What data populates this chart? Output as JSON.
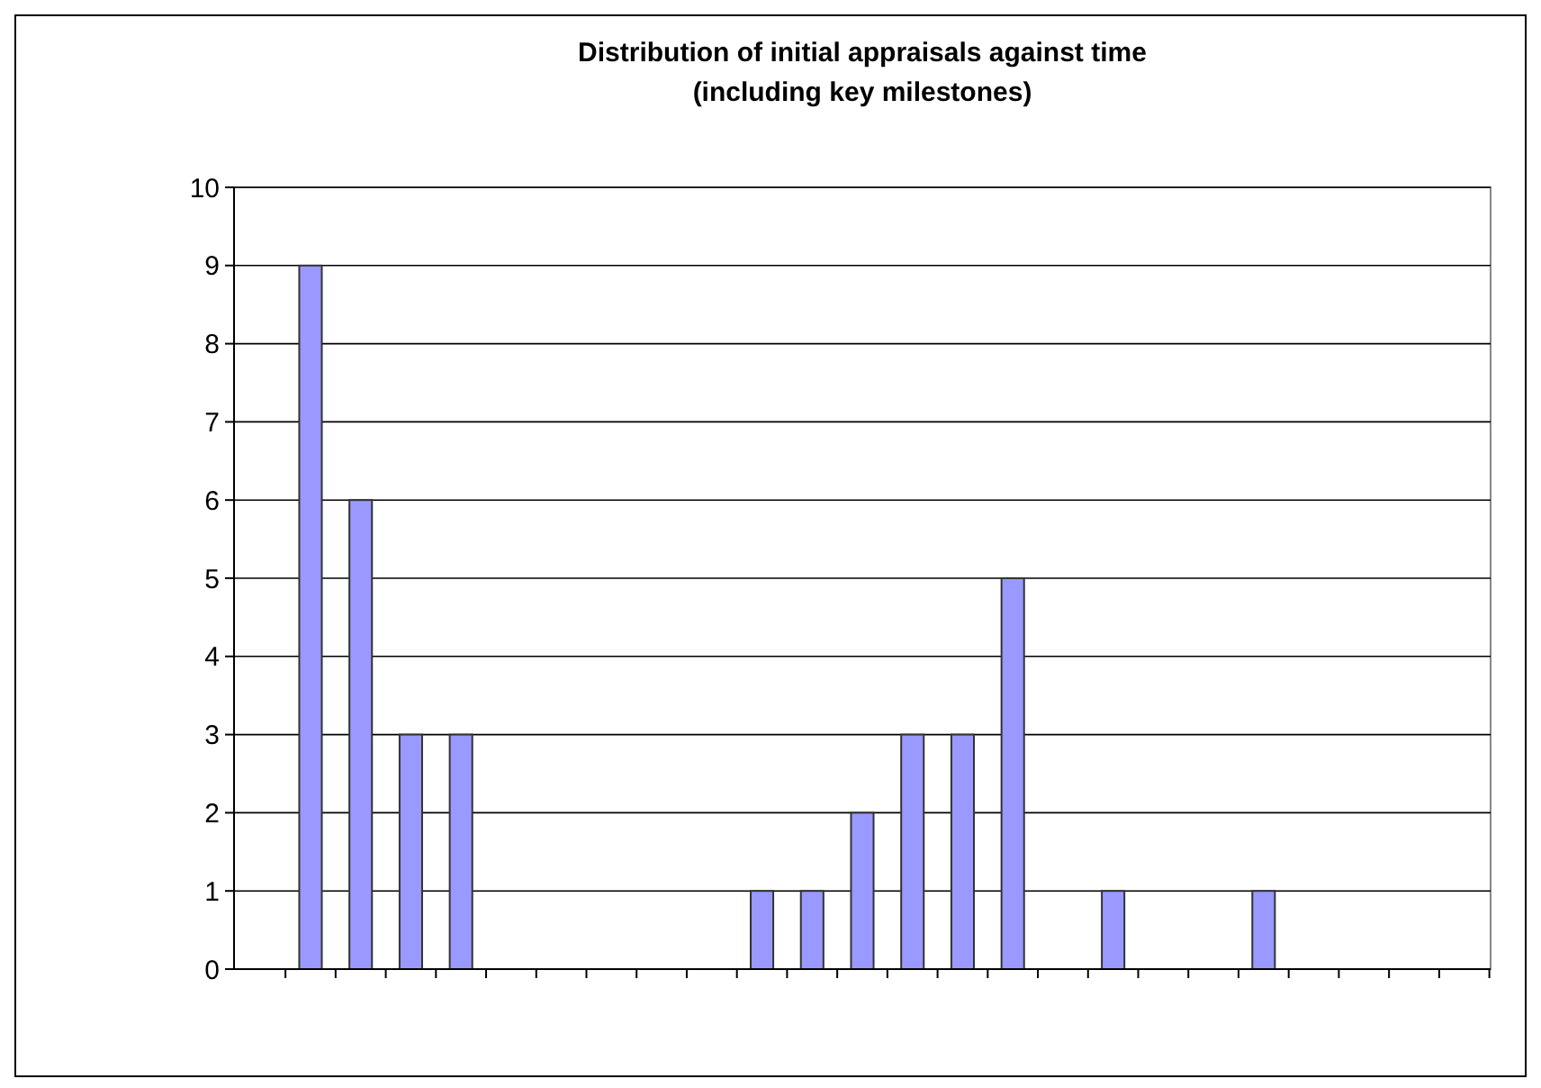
{
  "chart_data": {
    "type": "bar",
    "title": "Distribution of initial appraisals against time\n(including key milestones)",
    "categories": [
      null,
      null,
      null,
      null,
      null,
      null,
      null,
      null,
      null,
      null,
      null,
      null,
      null,
      null,
      null,
      null,
      null,
      null,
      null,
      null,
      null,
      null,
      null,
      null,
      null
    ],
    "values": [
      0,
      9,
      6,
      3,
      3,
      0,
      0,
      0,
      0,
      0,
      1,
      1,
      2,
      3,
      3,
      5,
      0,
      1,
      0,
      0,
      1,
      0,
      0,
      0,
      0
    ],
    "color": "#9999ff",
    "ylim": [
      0,
      10
    ],
    "yticks": [
      0,
      1,
      2,
      3,
      4,
      5,
      6,
      7,
      8,
      9,
      10
    ],
    "grid": "y"
  }
}
